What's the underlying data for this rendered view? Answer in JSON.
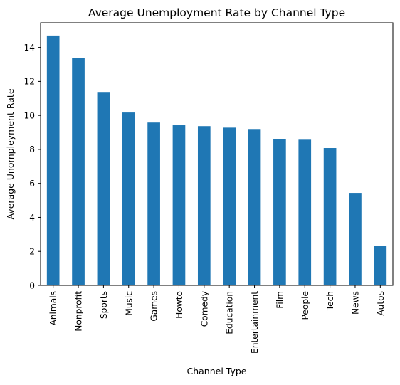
{
  "chart_data": {
    "type": "bar",
    "title": "Average Unemployment Rate by Channel Type",
    "xlabel": "Channel Type",
    "ylabel": "Average Unompleyment Rate",
    "categories": [
      "Animals",
      "Nonprofit",
      "Sports",
      "Music",
      "Games",
      "Howto",
      "Comedy",
      "Education",
      "Entertainment",
      "Film",
      "People",
      "Tech",
      "News",
      "Autos"
    ],
    "values": [
      14.7,
      13.38,
      11.38,
      10.17,
      9.58,
      9.42,
      9.37,
      9.28,
      9.2,
      8.62,
      8.57,
      8.08,
      5.44,
      2.31
    ],
    "ylim": [
      0,
      15.45
    ],
    "yticks": [
      0,
      2,
      4,
      6,
      8,
      10,
      12,
      14
    ],
    "bar_color": "#1f77b4",
    "grid": false,
    "legend": "none"
  }
}
